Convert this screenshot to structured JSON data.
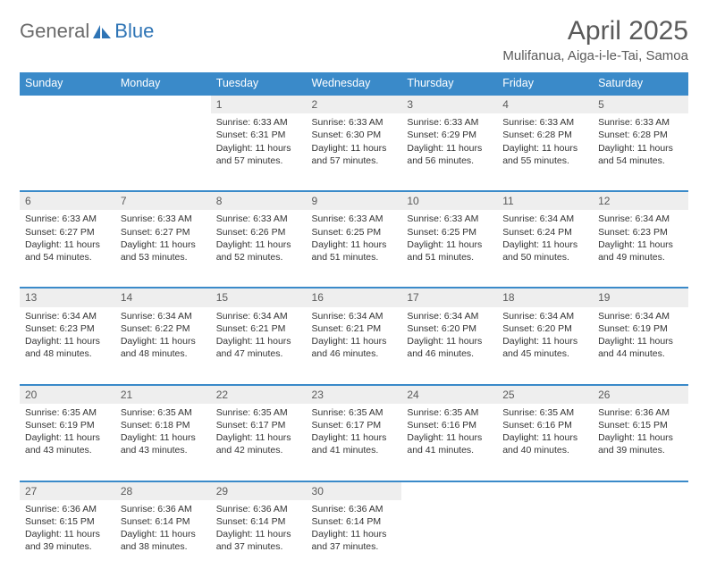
{
  "logo": {
    "text_left": "General",
    "text_right": "Blue",
    "icon_color": "#2e74b5"
  },
  "title": "April 2025",
  "location": "Mulifanua, Aiga-i-le-Tai, Samoa",
  "colors": {
    "header_bg": "#3a8ac9",
    "header_text": "#ffffff",
    "daynum_bg": "#eeeeee",
    "daynum_border": "#3a8ac9",
    "body_text": "#333333"
  },
  "weekdays": [
    "Sunday",
    "Monday",
    "Tuesday",
    "Wednesday",
    "Thursday",
    "Friday",
    "Saturday"
  ],
  "first_weekday_index": 2,
  "days": [
    {
      "n": 1,
      "sunrise": "6:33 AM",
      "sunset": "6:31 PM",
      "daylight": "11 hours and 57 minutes."
    },
    {
      "n": 2,
      "sunrise": "6:33 AM",
      "sunset": "6:30 PM",
      "daylight": "11 hours and 57 minutes."
    },
    {
      "n": 3,
      "sunrise": "6:33 AM",
      "sunset": "6:29 PM",
      "daylight": "11 hours and 56 minutes."
    },
    {
      "n": 4,
      "sunrise": "6:33 AM",
      "sunset": "6:28 PM",
      "daylight": "11 hours and 55 minutes."
    },
    {
      "n": 5,
      "sunrise": "6:33 AM",
      "sunset": "6:28 PM",
      "daylight": "11 hours and 54 minutes."
    },
    {
      "n": 6,
      "sunrise": "6:33 AM",
      "sunset": "6:27 PM",
      "daylight": "11 hours and 54 minutes."
    },
    {
      "n": 7,
      "sunrise": "6:33 AM",
      "sunset": "6:27 PM",
      "daylight": "11 hours and 53 minutes."
    },
    {
      "n": 8,
      "sunrise": "6:33 AM",
      "sunset": "6:26 PM",
      "daylight": "11 hours and 52 minutes."
    },
    {
      "n": 9,
      "sunrise": "6:33 AM",
      "sunset": "6:25 PM",
      "daylight": "11 hours and 51 minutes."
    },
    {
      "n": 10,
      "sunrise": "6:33 AM",
      "sunset": "6:25 PM",
      "daylight": "11 hours and 51 minutes."
    },
    {
      "n": 11,
      "sunrise": "6:34 AM",
      "sunset": "6:24 PM",
      "daylight": "11 hours and 50 minutes."
    },
    {
      "n": 12,
      "sunrise": "6:34 AM",
      "sunset": "6:23 PM",
      "daylight": "11 hours and 49 minutes."
    },
    {
      "n": 13,
      "sunrise": "6:34 AM",
      "sunset": "6:23 PM",
      "daylight": "11 hours and 48 minutes."
    },
    {
      "n": 14,
      "sunrise": "6:34 AM",
      "sunset": "6:22 PM",
      "daylight": "11 hours and 48 minutes."
    },
    {
      "n": 15,
      "sunrise": "6:34 AM",
      "sunset": "6:21 PM",
      "daylight": "11 hours and 47 minutes."
    },
    {
      "n": 16,
      "sunrise": "6:34 AM",
      "sunset": "6:21 PM",
      "daylight": "11 hours and 46 minutes."
    },
    {
      "n": 17,
      "sunrise": "6:34 AM",
      "sunset": "6:20 PM",
      "daylight": "11 hours and 46 minutes."
    },
    {
      "n": 18,
      "sunrise": "6:34 AM",
      "sunset": "6:20 PM",
      "daylight": "11 hours and 45 minutes."
    },
    {
      "n": 19,
      "sunrise": "6:34 AM",
      "sunset": "6:19 PM",
      "daylight": "11 hours and 44 minutes."
    },
    {
      "n": 20,
      "sunrise": "6:35 AM",
      "sunset": "6:19 PM",
      "daylight": "11 hours and 43 minutes."
    },
    {
      "n": 21,
      "sunrise": "6:35 AM",
      "sunset": "6:18 PM",
      "daylight": "11 hours and 43 minutes."
    },
    {
      "n": 22,
      "sunrise": "6:35 AM",
      "sunset": "6:17 PM",
      "daylight": "11 hours and 42 minutes."
    },
    {
      "n": 23,
      "sunrise": "6:35 AM",
      "sunset": "6:17 PM",
      "daylight": "11 hours and 41 minutes."
    },
    {
      "n": 24,
      "sunrise": "6:35 AM",
      "sunset": "6:16 PM",
      "daylight": "11 hours and 41 minutes."
    },
    {
      "n": 25,
      "sunrise": "6:35 AM",
      "sunset": "6:16 PM",
      "daylight": "11 hours and 40 minutes."
    },
    {
      "n": 26,
      "sunrise": "6:36 AM",
      "sunset": "6:15 PM",
      "daylight": "11 hours and 39 minutes."
    },
    {
      "n": 27,
      "sunrise": "6:36 AM",
      "sunset": "6:15 PM",
      "daylight": "11 hours and 39 minutes."
    },
    {
      "n": 28,
      "sunrise": "6:36 AM",
      "sunset": "6:14 PM",
      "daylight": "11 hours and 38 minutes."
    },
    {
      "n": 29,
      "sunrise": "6:36 AM",
      "sunset": "6:14 PM",
      "daylight": "11 hours and 37 minutes."
    },
    {
      "n": 30,
      "sunrise": "6:36 AM",
      "sunset": "6:14 PM",
      "daylight": "11 hours and 37 minutes."
    }
  ],
  "labels": {
    "sunrise": "Sunrise:",
    "sunset": "Sunset:",
    "daylight": "Daylight:"
  }
}
